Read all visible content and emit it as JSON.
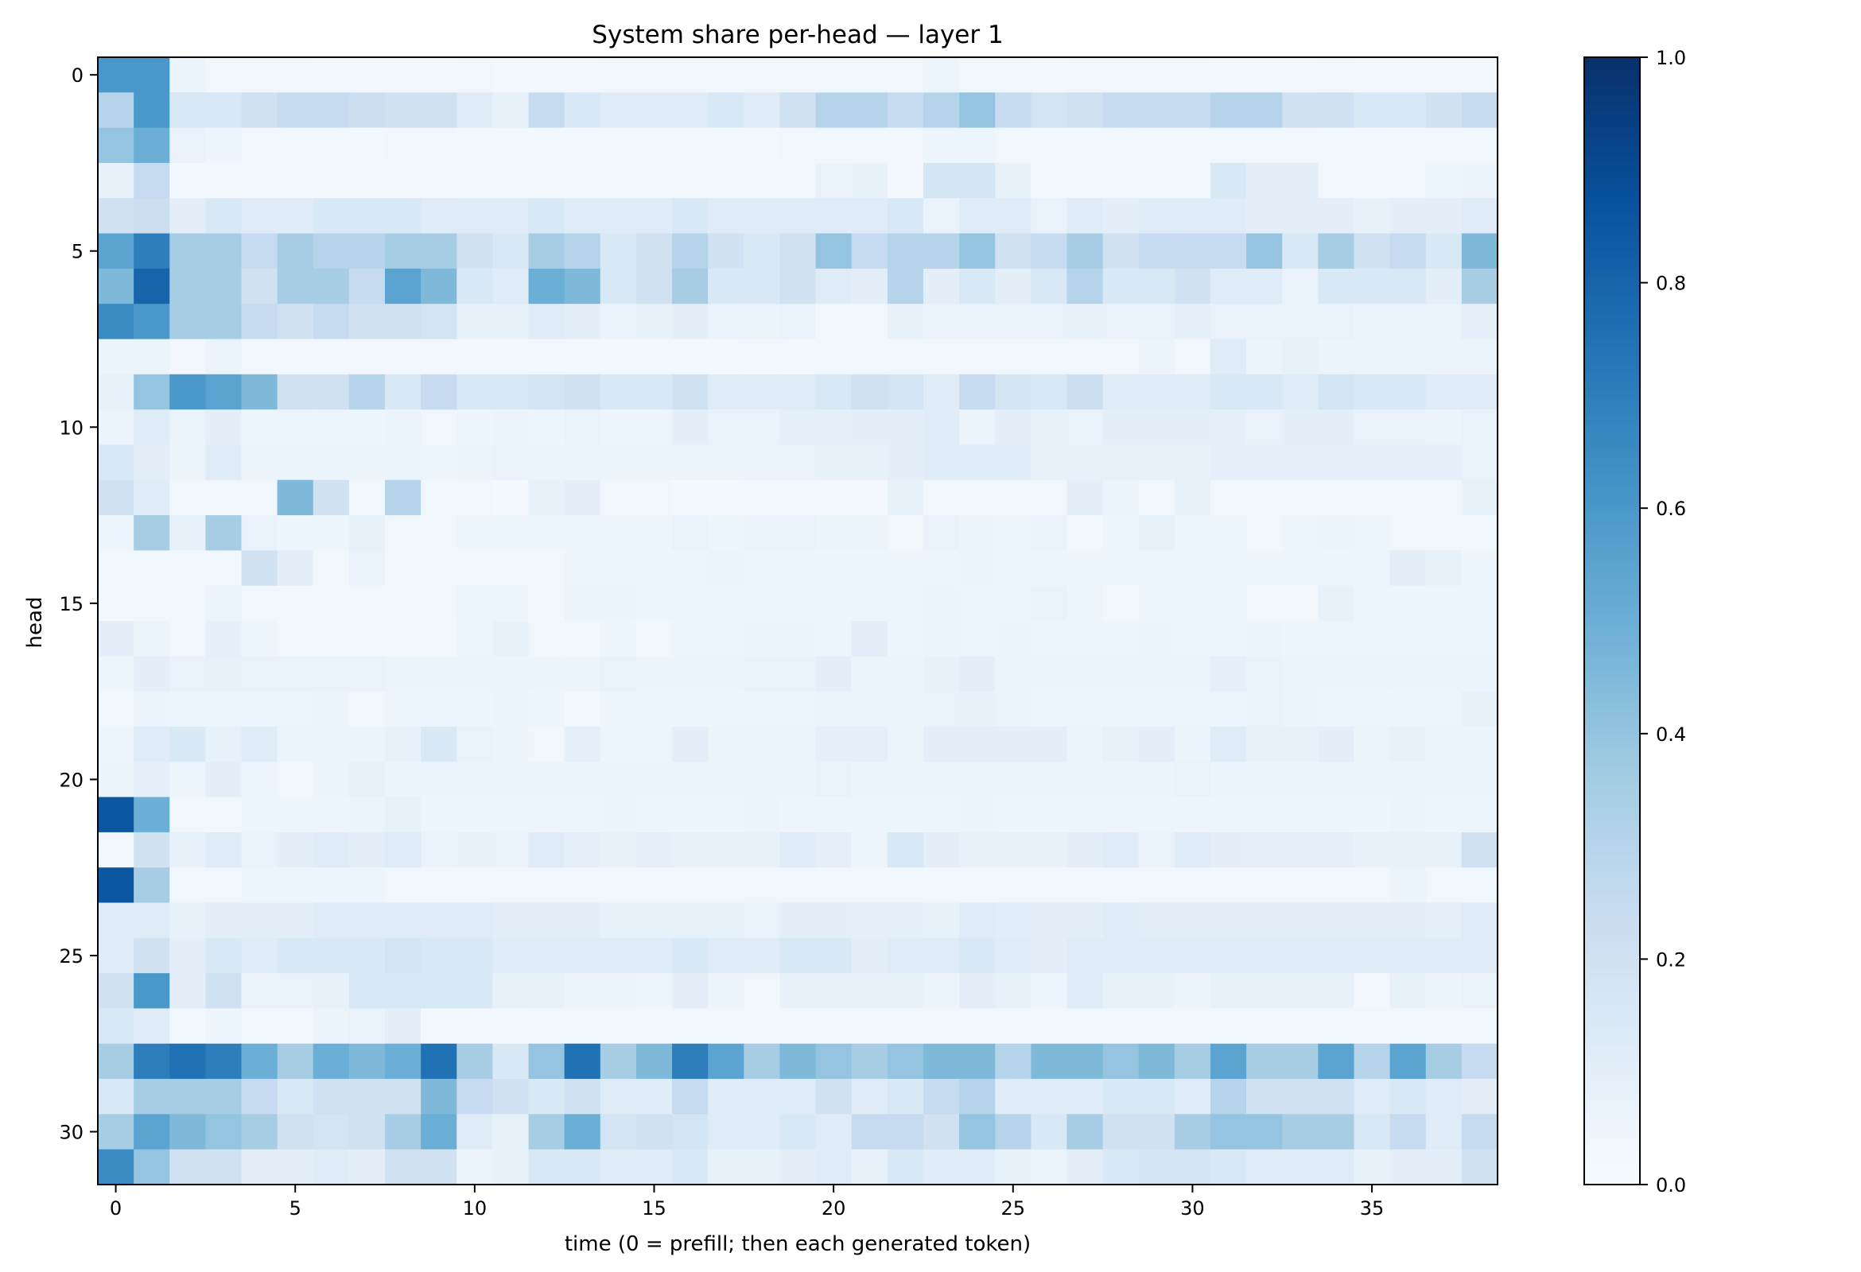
{
  "chart_data": {
    "type": "heatmap",
    "title": "System share per-head — layer 1",
    "xlabel": "time (0 = prefill; then each generated token)",
    "ylabel": "head",
    "x_ticks": [
      0,
      5,
      10,
      15,
      20,
      25,
      30,
      35
    ],
    "y_ticks": [
      0,
      5,
      10,
      15,
      20,
      25,
      30
    ],
    "x_range": [
      0,
      38
    ],
    "y_range": [
      0,
      31
    ],
    "colormap": "Blues",
    "color_low": "#f7fbff",
    "color_high": "#08306b",
    "colorbar_range": [
      0.0,
      1.0
    ],
    "colorbar_ticks": [
      "0.0",
      "0.2",
      "0.4",
      "0.6",
      "0.8",
      "1.0"
    ],
    "rows": [
      "60,60,06,04,04,04,03,03,03,03,04,03,03,03,04,04,04,04,04,04,04,04,04,05,04,04,03,04,04,04,04,03,03,03,04,03,03,03,03",
      "30,60,15,15,20,25,25,22,20,20,12,08,25,15,12,12,12,15,12,20,30,30,25,30,40,25,18,20,25,25,25,30,30,20,20,15,15,20,25",
      "40,50,07,05,04,03,03,03,04,04,03,03,03,04,04,04,04,03,03,04,04,04,04,05,05,04,03,03,03,04,04,04,04,04,03,04,04,04,04",
      "08,25,02,03,03,03,03,03,03,03,04,04,04,04,04,04,04,04,04,04,07,08,03,18,18,08,02,03,04,04,04,15,10,10,03,03,04,05,06",
      "20,22,10,15,12,12,15,15,15,12,12,12,15,12,12,12,15,12,12,12,12,12,15,07,12,12,07,12,10,12,12,12,10,10,10,08,10,10,12",
      "55,70,35,35,25,35,30,30,35,35,20,15,35,30,15,20,30,20,15,20,40,25,30,30,40,20,25,35,20,25,25,25,40,15,35,20,25,15,45",
      "45,80,35,35,20,35,35,25,55,45,15,12,50,45,15,20,35,15,15,20,12,10,30,10,15,10,15,30,15,15,20,12,12,07,15,15,15,10,35",
      "65,60,35,35,25,20,25,20,20,18,08,08,12,10,07,08,10,07,06,07,04,04,08,07,07,07,07,08,07,07,09,07,07,07,07,06,06,06,09",
      "06,06,03,06,03,03,03,03,03,03,03,03,03,03,03,03,03,03,03,03,04,04,04,04,04,04,04,04,04,06,04,12,06,08,06,06,06,06,06",
      "08,40,60,55,45,20,20,30,15,25,15,15,18,20,15,15,20,12,12,12,15,20,18,12,25,18,15,22,12,12,12,15,15,12,18,15,15,12,12",
      "06,12,06,10,05,05,05,05,06,04,05,06,05,07,05,05,10,07,07,09,09,10,10,12,06,10,08,07,10,10,10,09,07,10,10,07,07,06,07",
      "15,10,06,12,06,06,06,06,06,05,06,07,06,06,06,06,06,06,07,07,08,08,10,12,12,12,08,08,08,08,08,09,09,09,09,09,09,09,07",
      "20,12,04,04,04,45,20,04,30,04,04,02,08,10,04,04,02,02,04,04,03,03,08,04,04,04,04,10,06,04,08,04,04,04,04,04,04,04,08",
      "05,35,08,35,07,05,05,08,04,04,05,05,05,05,05,05,07,05,07,07,06,06,04,07,06,05,07,04,05,08,05,05,04,05,06,05,04,04,04",
      "04,04,04,04,20,10,04,07,04,04,04,04,04,05,05,05,05,06,05,05,05,05,05,05,06,05,05,05,05,05,05,05,05,05,05,05,10,08,05",
      "02,03,04,06,04,04,04,04,04,04,05,05,04,06,06,05,05,05,05,05,05,05,05,06,05,05,07,05,04,05,05,05,04,04,08,05,05,05,05",
      "10,06,04,09,05,03,03,03,03,03,05,08,04,04,05,04,05,05,06,06,05,10,05,06,05,06,05,05,05,06,05,05,06,05,05,05,05,05,05",
      "05,10,07,08,07,07,07,07,06,06,06,06,06,06,07,06,06,06,07,07,10,06,06,08,10,06,06,06,06,06,06,09,07,06,06,06,06,06,06",
      "04,06,05,05,05,05,06,04,05,05,05,06,05,04,05,05,05,05,05,05,06,06,06,07,08,06,05,05,05,05,05,05,07,06,05,05,05,05,08",
      "05,12,15,08,12,06,06,06,08,15,07,06,04,09,05,05,10,06,06,06,09,09,06,10,10,10,10,06,08,10,06,12,08,08,10,06,08,06,06",
      "06,09,05,10,05,04,06,08,06,06,06,06,06,06,06,06,06,06,06,06,07,06,06,06,06,06,06,06,06,06,07,06,06,06,06,06,06,06,06",
      "85,50,04,04,05,05,05,06,08,05,05,05,05,05,06,05,05,05,06,05,05,05,05,05,06,05,05,05,05,05,05,05,05,05,05,05,06,05,05",
      "03,20,08,12,07,10,12,10,12,07,08,07,12,09,08,09,08,08,08,12,09,05,15,10,08,08,08,10,12,07,12,10,09,09,09,08,08,08,20",
      "85,35,04,04,05,05,05,05,04,04,04,04,04,04,04,04,04,04,04,04,04,04,04,04,04,04,04,04,04,04,04,04,04,04,04,04,06,04,04",
      "12,12,08,10,10,10,12,12,12,12,12,10,10,10,08,08,08,08,07,10,10,09,09,08,12,11,10,10,12,10,10,10,10,10,10,10,10,09,12",
      "12,20,10,15,12,15,15,15,18,15,15,12,12,12,12,12,15,12,12,15,15,10,12,12,15,12,10,12,12,12,12,12,12,12,12,12,12,12,12",
      "20,60,10,20,07,07,08,15,15,15,15,08,08,06,06,05,10,06,04,08,08,08,08,06,10,08,05,12,08,08,06,08,08,08,08,03,08,06,07",
      "15,12,04,05,04,04,06,07,10,03,03,03,04,04,04,04,04,04,04,04,04,04,04,04,04,04,04,04,04,04,04,04,04,04,04,04,04,04,04",
      "35,70,75,70,50,35,50,45,50,75,35,15,40,75,35,45,70,55,35,45,40,35,40,45,45,30,45,45,40,45,35,55,35,35,55,30,55,35,25",
      "15,35,35,35,25,15,20,20,20,45,25,20,15,20,12,12,25,12,12,12,20,12,15,25,30,12,12,12,15,15,12,30,20,20,20,12,15,12,10",
      "35,55,45,40,35,20,18,20,35,50,12,08,35,50,18,20,18,12,12,15,12,25,25,20,40,30,15,35,20,20,35,40,40,35,35,15,25,12,25",
      "65,40,20,20,10,10,12,10,20,20,06,08,15,15,12,12,15,08,08,10,12,08,15,12,12,08,06,10,15,18,18,15,12,12,12,08,10,10,20"
    ]
  }
}
